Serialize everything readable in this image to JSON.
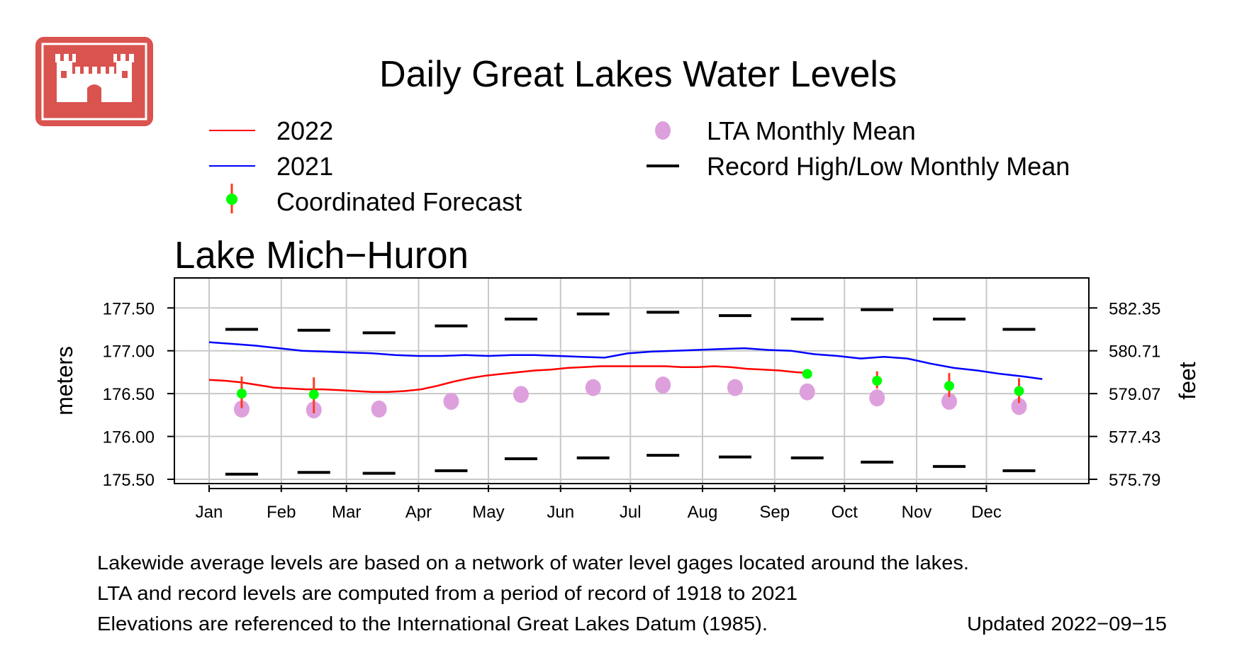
{
  "header": {
    "title": "Daily Great Lakes Water Levels",
    "logo_color": "#d9534f"
  },
  "legend": {
    "items": [
      {
        "label": "2022",
        "symbol": "line",
        "color": "#ff0000"
      },
      {
        "label": "2021",
        "symbol": "line",
        "color": "#0000ff"
      },
      {
        "label": "Coordinated Forecast",
        "symbol": "forecast",
        "color": "#00ff00",
        "bar_color": "#ff3b1f"
      },
      {
        "label": "LTA Monthly Mean",
        "symbol": "dot",
        "color": "#dda0dd"
      },
      {
        "label": "Record High/Low Monthly Mean",
        "symbol": "dash",
        "color": "#000000"
      }
    ]
  },
  "footer": {
    "lines": [
      "Lakewide average levels are based on a network of water level gages located around the lakes.",
      "LTA and record levels are computed from a period of record of 1918 to  2021",
      "Elevations are referenced to the International Great Lakes Datum (1985)."
    ],
    "updated": "Updated 2022−09−15"
  },
  "chart_data": {
    "type": "line",
    "title": "Lake Mich−Huron",
    "ylabel": "meters",
    "ylabel_right": "feet",
    "ylim": [
      175.45,
      177.85
    ],
    "months": [
      "Jan",
      "Feb",
      "Mar",
      "Apr",
      "May",
      "Jun",
      "Jul",
      "Aug",
      "Sep",
      "Oct",
      "Nov",
      "Dec"
    ],
    "y_ticks": [
      "175.50",
      "176.00",
      "176.50",
      "177.00",
      "177.50"
    ],
    "y_ticks_right": [
      "575.79",
      "577.43",
      "579.07",
      "580.71",
      "582.35"
    ],
    "grid": true,
    "series": [
      {
        "name": "2022",
        "color": "#ff0000",
        "x": [
          0,
          7,
          14,
          21,
          28,
          35,
          42,
          49,
          56,
          63,
          70,
          77,
          84,
          91,
          98,
          105,
          112,
          119,
          126,
          133,
          140,
          147,
          154,
          161,
          168,
          175,
          182,
          189,
          196,
          203,
          210,
          217,
          224,
          231,
          238,
          245,
          252,
          258
        ],
        "y": [
          176.66,
          176.65,
          176.63,
          176.6,
          176.57,
          176.56,
          176.55,
          176.55,
          176.54,
          176.53,
          176.52,
          176.52,
          176.53,
          176.55,
          176.59,
          176.64,
          176.68,
          176.71,
          176.73,
          176.75,
          176.77,
          176.78,
          176.8,
          176.81,
          176.82,
          176.82,
          176.82,
          176.82,
          176.82,
          176.81,
          176.81,
          176.82,
          176.81,
          176.79,
          176.78,
          176.77,
          176.75,
          176.74
        ]
      },
      {
        "name": "2021",
        "color": "#0000ff",
        "x": [
          0,
          10,
          20,
          30,
          40,
          50,
          60,
          70,
          80,
          90,
          100,
          110,
          120,
          130,
          140,
          150,
          160,
          170,
          180,
          190,
          200,
          210,
          220,
          230,
          240,
          250,
          260,
          270,
          280,
          290,
          300,
          310,
          320,
          330,
          340,
          350,
          358
        ],
        "y": [
          177.1,
          177.08,
          177.06,
          177.03,
          177.0,
          176.99,
          176.98,
          176.97,
          176.95,
          176.94,
          176.94,
          176.95,
          176.94,
          176.95,
          176.95,
          176.94,
          176.93,
          176.92,
          176.97,
          176.99,
          177.0,
          177.01,
          177.02,
          177.03,
          177.01,
          177.0,
          176.96,
          176.94,
          176.91,
          176.93,
          176.91,
          176.85,
          176.8,
          176.77,
          176.73,
          176.7,
          176.67
        ]
      }
    ],
    "lta_monthly_mean": [
      176.32,
      176.31,
      176.32,
      176.41,
      176.49,
      176.57,
      176.6,
      176.57,
      176.52,
      176.45,
      176.41,
      176.35
    ],
    "record_high_monthly_mean": [
      177.25,
      177.24,
      177.21,
      177.29,
      177.37,
      177.43,
      177.45,
      177.41,
      177.37,
      177.48,
      177.37,
      177.25
    ],
    "record_low_monthly_mean": [
      175.56,
      175.58,
      175.57,
      175.6,
      175.74,
      175.75,
      175.78,
      175.76,
      175.75,
      175.7,
      175.65,
      175.6
    ],
    "coordinated_forecast": [
      {
        "month": "Jan",
        "value": 176.5,
        "low": 176.33,
        "high": 176.7
      },
      {
        "month": "Feb",
        "value": 176.49,
        "low": 176.27,
        "high": 176.69
      },
      {
        "month": "Sep",
        "value": 176.73,
        "low": 176.7,
        "high": 176.76
      },
      {
        "month": "Oct",
        "value": 176.65,
        "low": 176.56,
        "high": 176.76
      },
      {
        "month": "Nov",
        "value": 176.59,
        "low": 176.46,
        "high": 176.74
      },
      {
        "month": "Dec",
        "value": 176.53,
        "low": 176.39,
        "high": 176.68
      }
    ]
  }
}
